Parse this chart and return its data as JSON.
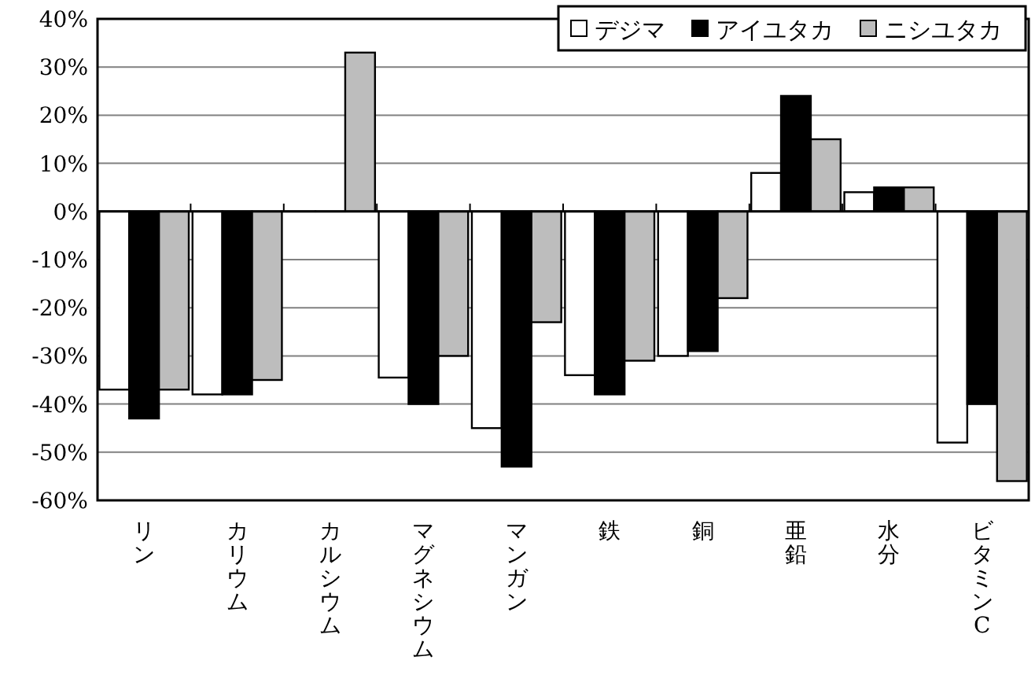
{
  "chart_data": {
    "type": "bar",
    "categories": [
      "リン",
      "カリウム",
      "カルシウム",
      "マグネシウム",
      "マンガン",
      "鉄",
      "銅",
      "亜鉛",
      "水分",
      "ビタミンC"
    ],
    "series": [
      {
        "name": "デジマ",
        "color": "#ffffff",
        "values": [
          -37,
          -38,
          0,
          -34.5,
          -45,
          -34,
          -30,
          8,
          4,
          -48
        ]
      },
      {
        "name": "アイユタカ",
        "color": "#000000",
        "values": [
          -43,
          -38,
          0,
          -40,
          -53,
          -38,
          -29,
          24,
          5,
          -40
        ]
      },
      {
        "name": "ニシユタカ",
        "color": "#bdbdbd",
        "values": [
          -37,
          -35,
          33,
          -30,
          -23,
          -31,
          -18,
          15,
          5,
          -56
        ]
      }
    ],
    "ylim": [
      -60,
      40
    ],
    "yticks": [
      {
        "value": -60,
        "label": "-60%"
      },
      {
        "value": -50,
        "label": "-50%"
      },
      {
        "value": -40,
        "label": "-40%"
      },
      {
        "value": -30,
        "label": "-30%"
      },
      {
        "value": -20,
        "label": "-20%"
      },
      {
        "value": -10,
        "label": "-10%"
      },
      {
        "value": 0,
        "label": "0%"
      },
      {
        "value": 10,
        "label": "10%"
      },
      {
        "value": 20,
        "label": "20%"
      },
      {
        "value": 30,
        "label": "30%"
      },
      {
        "value": 40,
        "label": "40%"
      }
    ],
    "grid": "y",
    "legend": "top right"
  }
}
